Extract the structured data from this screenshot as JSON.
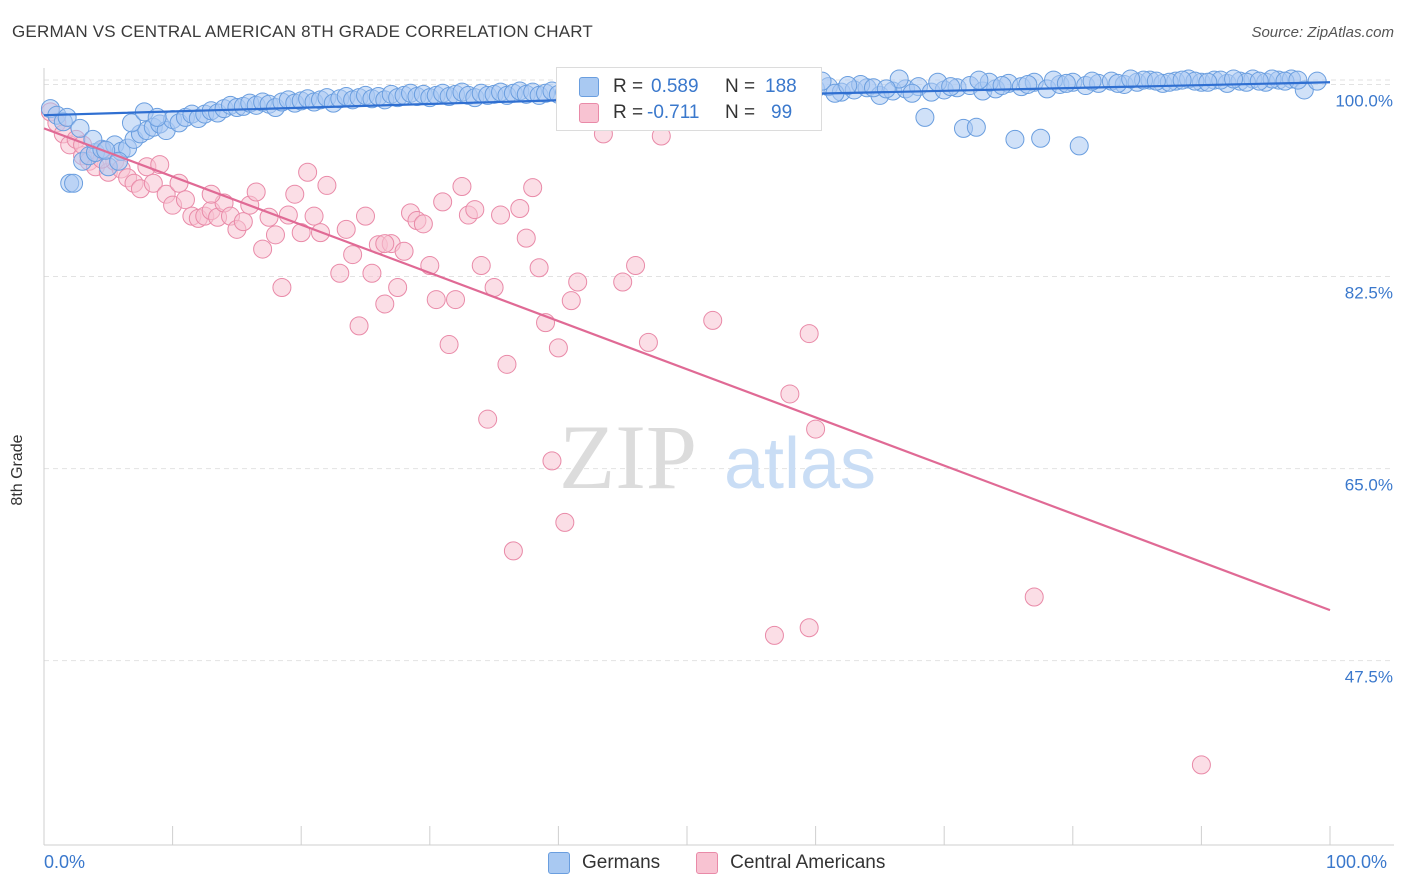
{
  "title": "GERMAN VS CENTRAL AMERICAN 8TH GRADE CORRELATION CHART",
  "source": "Source: ZipAtlas.com",
  "colors": {
    "blue_fill": "#a9c9f2",
    "blue_stroke": "#6a9edf",
    "blue_line": "#2f6fd1",
    "pink_fill": "#f8c3d2",
    "pink_stroke": "#e98aa8",
    "pink_line": "#e06a95",
    "axis_label": "#3a78cc",
    "grid": "#e2e2e2"
  },
  "legend": {
    "rows": [
      {
        "r_label": "R = ",
        "r_value": "0.589",
        "n_label": "N = ",
        "n_value": "188"
      },
      {
        "r_label": "R = ",
        "r_value": "-0.711",
        "n_label": "N = ",
        "n_value": "99"
      }
    ]
  },
  "bottom_legend": {
    "german": "Germans",
    "central": "Central Americans"
  },
  "x_labels": {
    "min": "0.0%",
    "max": "100.0%"
  },
  "watermark": {
    "zip": "ZIP",
    "atlas": "atlas"
  },
  "chart_data": {
    "type": "scatter",
    "xlabel": "",
    "ylabel": "8th Grade",
    "xlim": [
      0,
      100
    ],
    "ylim": [
      30.7,
      101.5
    ],
    "y_ticks": [
      100.0,
      82.5,
      65.0,
      47.5
    ],
    "y_tick_labels": [
      "100.0%",
      "82.5%",
      "65.0%",
      "47.5%"
    ],
    "grid": true,
    "series": [
      {
        "name": "Germans",
        "R": 0.589,
        "N": 188,
        "trend": {
          "x": [
            0,
            50,
            100
          ],
          "y": [
            97.2,
            98.9,
            100.2
          ]
        },
        "points": [
          [
            0.5,
            97.8
          ],
          [
            1.0,
            97.2
          ],
          [
            1.5,
            96.6
          ],
          [
            2,
            91.0
          ],
          [
            2.3,
            91.0
          ],
          [
            3,
            93.0
          ],
          [
            3.5,
            93.5
          ],
          [
            4,
            93.8
          ],
          [
            4.5,
            94.1
          ],
          [
            5,
            92.5
          ],
          [
            5.5,
            94.5
          ],
          [
            6,
            93.9
          ],
          [
            6.5,
            94.2
          ],
          [
            7,
            95.0
          ],
          [
            7.5,
            95.5
          ],
          [
            8,
            95.8
          ],
          [
            8.5,
            96.1
          ],
          [
            9,
            96.4
          ],
          [
            9.5,
            95.8
          ],
          [
            10,
            96.8
          ],
          [
            10.5,
            96.5
          ],
          [
            11,
            97.0
          ],
          [
            11.5,
            97.3
          ],
          [
            12,
            96.9
          ],
          [
            12.5,
            97.3
          ],
          [
            13,
            97.6
          ],
          [
            13.5,
            97.4
          ],
          [
            14,
            97.8
          ],
          [
            14.5,
            98.1
          ],
          [
            15,
            97.9
          ],
          [
            15.5,
            98.0
          ],
          [
            16,
            98.3
          ],
          [
            16.5,
            98.1
          ],
          [
            17,
            98.4
          ],
          [
            17.5,
            98.2
          ],
          [
            18,
            97.9
          ],
          [
            18.5,
            98.4
          ],
          [
            19,
            98.6
          ],
          [
            19.5,
            98.3
          ],
          [
            20,
            98.5
          ],
          [
            20.5,
            98.7
          ],
          [
            21,
            98.4
          ],
          [
            21.5,
            98.6
          ],
          [
            22,
            98.8
          ],
          [
            22.5,
            98.3
          ],
          [
            23,
            98.7
          ],
          [
            23.5,
            98.9
          ],
          [
            24,
            98.6
          ],
          [
            24.5,
            98.8
          ],
          [
            25,
            99.0
          ],
          [
            25.5,
            98.7
          ],
          [
            26,
            98.9
          ],
          [
            26.5,
            98.6
          ],
          [
            27,
            99.1
          ],
          [
            27.5,
            98.8
          ],
          [
            28,
            99.0
          ],
          [
            28.5,
            99.2
          ],
          [
            29,
            98.9
          ],
          [
            29.5,
            99.1
          ],
          [
            30,
            98.8
          ],
          [
            30.5,
            99.0
          ],
          [
            31,
            99.2
          ],
          [
            31.5,
            98.9
          ],
          [
            32,
            99.1
          ],
          [
            32.5,
            99.3
          ],
          [
            33,
            99.0
          ],
          [
            33.5,
            98.8
          ],
          [
            34,
            99.2
          ],
          [
            34.5,
            99.0
          ],
          [
            35,
            99.1
          ],
          [
            35.5,
            99.3
          ],
          [
            36,
            99.0
          ],
          [
            36.5,
            99.2
          ],
          [
            37,
            99.4
          ],
          [
            37.5,
            99.1
          ],
          [
            38,
            99.3
          ],
          [
            38.5,
            99.0
          ],
          [
            39,
            99.2
          ],
          [
            39.5,
            99.4
          ],
          [
            40,
            99.1
          ],
          [
            40.5,
            99.3
          ],
          [
            41,
            99.5
          ],
          [
            41.5,
            99.2
          ],
          [
            42,
            99.4
          ],
          [
            42.5,
            99.1
          ],
          [
            43,
            99.3
          ],
          [
            43.5,
            99.5
          ],
          [
            44,
            99.2
          ],
          [
            44.5,
            99.4
          ],
          [
            45,
            99.0
          ],
          [
            45.5,
            99.3
          ],
          [
            46,
            99.5
          ],
          [
            46.5,
            99.2
          ],
          [
            47,
            99.4
          ],
          [
            47.5,
            99.6
          ],
          [
            48,
            99.3
          ],
          [
            48.5,
            99.5
          ],
          [
            49,
            99.2
          ],
          [
            49.5,
            99.4
          ],
          [
            50,
            99.6
          ],
          [
            51,
            99.3
          ],
          [
            52,
            99.5
          ],
          [
            53,
            99.7
          ],
          [
            54,
            99.4
          ],
          [
            55,
            99.6
          ],
          [
            56,
            99.3
          ],
          [
            57,
            99.5
          ],
          [
            58,
            99.7
          ],
          [
            59,
            99.4
          ],
          [
            60,
            99.6
          ],
          [
            61,
            99.8
          ],
          [
            62,
            99.3
          ],
          [
            63,
            99.5
          ],
          [
            64,
            99.7
          ],
          [
            65,
            99.0
          ],
          [
            66,
            99.4
          ],
          [
            67,
            99.6
          ],
          [
            68,
            99.8
          ],
          [
            69,
            99.3
          ],
          [
            70,
            99.5
          ],
          [
            71,
            99.7
          ],
          [
            72,
            99.9
          ],
          [
            73,
            99.4
          ],
          [
            74,
            99.6
          ],
          [
            75,
            100.1
          ],
          [
            76,
            99.8
          ],
          [
            77,
            100.2
          ],
          [
            78,
            99.6
          ],
          [
            79,
            100.0
          ],
          [
            80,
            100.2
          ],
          [
            81,
            99.9
          ],
          [
            82,
            100.1
          ],
          [
            83,
            100.3
          ],
          [
            84,
            100.0
          ],
          [
            85,
            100.2
          ],
          [
            86,
            100.4
          ],
          [
            87,
            100.1
          ],
          [
            88,
            100.3
          ],
          [
            89,
            100.5
          ],
          [
            90,
            100.2
          ],
          [
            91,
            100.4
          ],
          [
            92,
            100.1
          ],
          [
            93,
            100.3
          ],
          [
            94,
            100.5
          ],
          [
            95,
            100.2
          ],
          [
            96,
            100.4
          ],
          [
            97,
            100.5
          ],
          [
            98,
            99.5
          ],
          [
            99,
            100.3
          ],
          [
            66.5,
            100.5
          ],
          [
            68.5,
            97.0
          ],
          [
            71.5,
            96.0
          ],
          [
            72.5,
            96.1
          ],
          [
            75.5,
            95.0
          ],
          [
            77.5,
            95.1
          ],
          [
            80.5,
            94.4
          ],
          [
            57.5,
            99.1
          ],
          [
            60.5,
            100.3
          ],
          [
            63.5,
            100.0
          ],
          [
            64.5,
            99.7
          ],
          [
            81.5,
            100.3
          ],
          [
            83.5,
            100.1
          ],
          [
            85.5,
            100.4
          ],
          [
            87.5,
            100.2
          ],
          [
            89.5,
            100.3
          ],
          [
            91.5,
            100.4
          ],
          [
            93.5,
            100.2
          ],
          [
            95.5,
            100.5
          ],
          [
            96.5,
            100.3
          ],
          [
            69.5,
            100.2
          ],
          [
            70.5,
            99.8
          ],
          [
            73.5,
            100.2
          ],
          [
            74.5,
            99.9
          ],
          [
            76.5,
            100.0
          ],
          [
            78.5,
            100.4
          ],
          [
            79.5,
            100.1
          ],
          [
            84.5,
            100.5
          ],
          [
            86.5,
            100.3
          ],
          [
            88.5,
            100.4
          ],
          [
            90.5,
            100.2
          ],
          [
            92.5,
            100.5
          ],
          [
            94.5,
            100.3
          ],
          [
            97.5,
            100.4
          ],
          [
            58.5,
            99.9
          ],
          [
            59.5,
            99.1
          ],
          [
            61.5,
            99.2
          ],
          [
            62.5,
            99.9
          ],
          [
            65.5,
            99.6
          ],
          [
            67.5,
            99.2
          ],
          [
            72.7,
            100.4
          ],
          [
            1.8,
            97.0
          ],
          [
            2.8,
            96.0
          ],
          [
            3.8,
            95.0
          ],
          [
            4.8,
            94.0
          ],
          [
            5.8,
            93.0
          ],
          [
            6.8,
            96.5
          ],
          [
            7.8,
            97.5
          ],
          [
            8.8,
            97.0
          ]
        ]
      },
      {
        "name": "Central Americans",
        "R": -0.711,
        "N": 99,
        "trend": {
          "x": [
            0,
            100
          ],
          "y": [
            96.0,
            52.1
          ]
        },
        "points": [
          [
            0.5,
            97.5
          ],
          [
            1.0,
            96.5
          ],
          [
            1.5,
            95.5
          ],
          [
            2,
            94.5
          ],
          [
            2.5,
            95.0
          ],
          [
            3,
            93.5
          ],
          [
            3.5,
            93.0
          ],
          [
            4,
            92.5
          ],
          [
            4.5,
            94.0
          ],
          [
            5,
            92.0
          ],
          [
            5.5,
            93.0
          ],
          [
            6,
            92.3
          ],
          [
            6.5,
            91.5
          ],
          [
            7,
            91.0
          ],
          [
            7.5,
            90.5
          ],
          [
            8,
            92.5
          ],
          [
            8.5,
            91.0
          ],
          [
            9,
            92.7
          ],
          [
            9.5,
            90.0
          ],
          [
            10,
            89.0
          ],
          [
            10.5,
            91.0
          ],
          [
            11,
            89.5
          ],
          [
            11.5,
            88.0
          ],
          [
            12,
            87.8
          ],
          [
            12.5,
            88.0
          ],
          [
            13,
            88.5
          ],
          [
            13.5,
            87.9
          ],
          [
            14,
            89.2
          ],
          [
            14.5,
            88.0
          ],
          [
            15,
            86.8
          ],
          [
            15.5,
            87.5
          ],
          [
            16,
            89.0
          ],
          [
            16.5,
            90.2
          ],
          [
            17,
            85.0
          ],
          [
            17.5,
            87.9
          ],
          [
            18,
            86.3
          ],
          [
            18.5,
            81.5
          ],
          [
            19,
            88.1
          ],
          [
            19.5,
            90.0
          ],
          [
            20,
            86.5
          ],
          [
            20.5,
            92.0
          ],
          [
            21,
            88.0
          ],
          [
            21.5,
            86.5
          ],
          [
            22,
            90.8
          ],
          [
            23,
            82.8
          ],
          [
            23.5,
            86.8
          ],
          [
            24,
            84.5
          ],
          [
            24.5,
            78.0
          ],
          [
            25,
            88.0
          ],
          [
            25.5,
            82.8
          ],
          [
            26,
            85.4
          ],
          [
            26.5,
            80.0
          ],
          [
            27,
            85.5
          ],
          [
            27.5,
            81.5
          ],
          [
            28,
            84.8
          ],
          [
            28.5,
            88.3
          ],
          [
            29,
            87.6
          ],
          [
            29.5,
            87.3
          ],
          [
            30,
            83.5
          ],
          [
            30.5,
            80.4
          ],
          [
            31,
            89.3
          ],
          [
            31.5,
            76.3
          ],
          [
            32,
            80.4
          ],
          [
            32.5,
            90.7
          ],
          [
            33,
            88.1
          ],
          [
            33.5,
            88.6
          ],
          [
            34,
            83.5
          ],
          [
            34.5,
            69.5
          ],
          [
            35,
            81.5
          ],
          [
            35.5,
            88.1
          ],
          [
            36,
            74.5
          ],
          [
            36.5,
            57.5
          ],
          [
            37,
            88.7
          ],
          [
            37.5,
            86.0
          ],
          [
            38,
            90.6
          ],
          [
            38.5,
            83.3
          ],
          [
            39,
            78.3
          ],
          [
            39.5,
            65.7
          ],
          [
            40,
            76.0
          ],
          [
            40.5,
            60.1
          ],
          [
            41,
            80.3
          ],
          [
            41.5,
            82.0
          ],
          [
            43.5,
            95.5
          ],
          [
            45,
            82.0
          ],
          [
            46,
            83.5
          ],
          [
            47,
            76.5
          ],
          [
            48,
            95.3
          ],
          [
            52,
            78.5
          ],
          [
            58,
            71.8
          ],
          [
            59.5,
            77.3
          ],
          [
            60,
            68.6
          ],
          [
            56.8,
            49.8
          ],
          [
            59.5,
            50.5
          ],
          [
            77,
            53.3
          ],
          [
            90,
            38.0
          ],
          [
            26.5,
            85.5
          ],
          [
            13,
            90.0
          ],
          [
            3,
            94.5
          ],
          [
            4.5,
            93.2
          ]
        ]
      }
    ]
  }
}
